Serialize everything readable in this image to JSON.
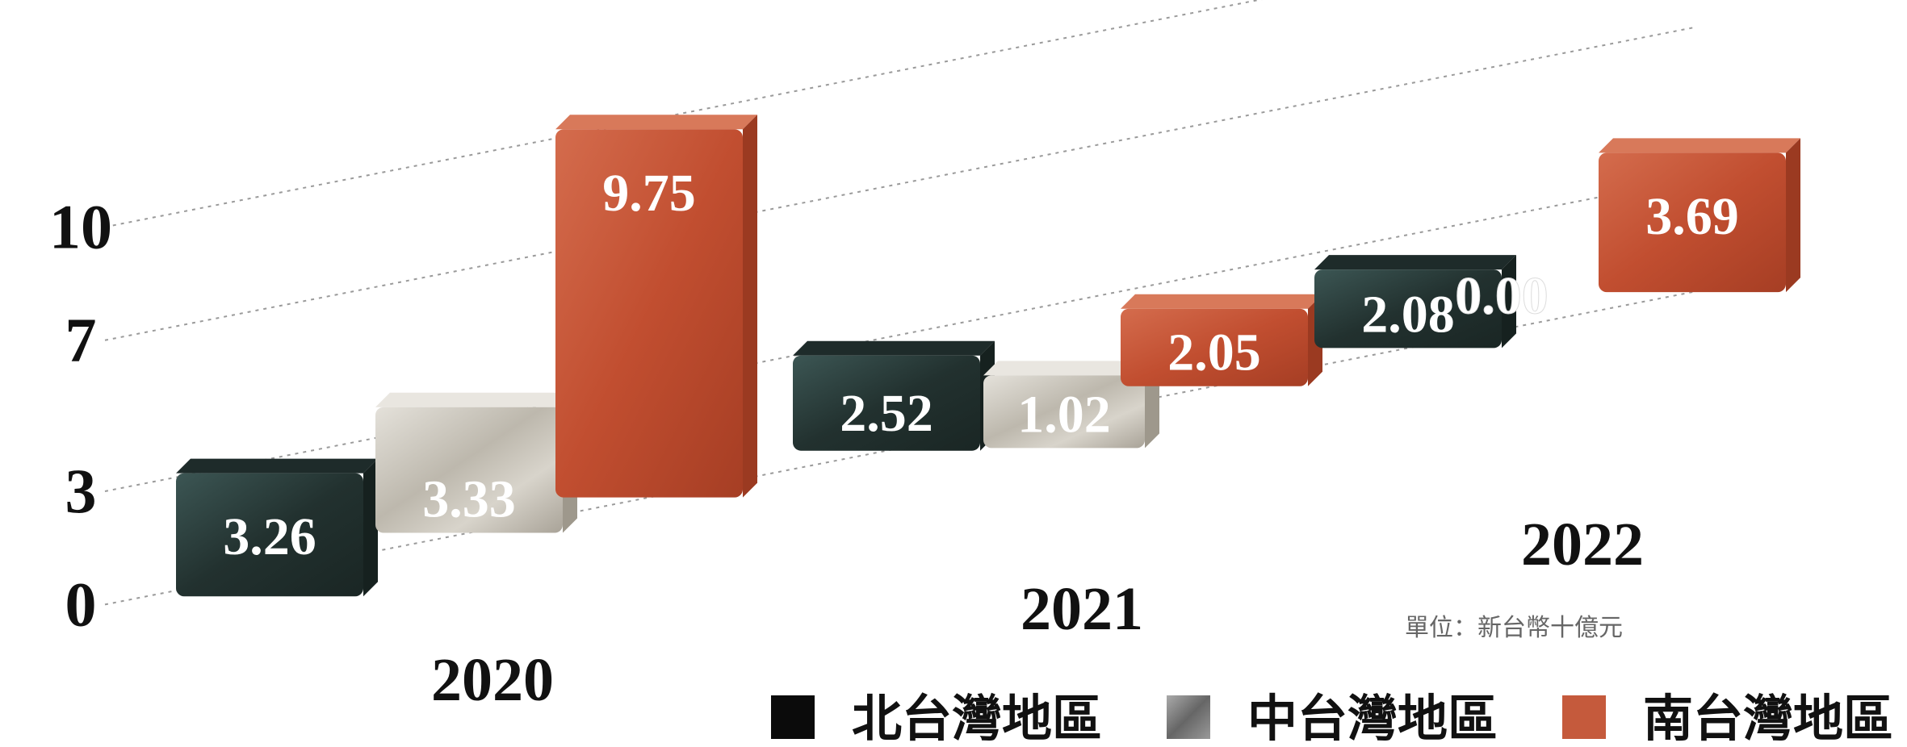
{
  "chart_data": {
    "type": "bar",
    "categories": [
      "2020",
      "2021",
      "2022"
    ],
    "series": [
      {
        "name": "北台灣地區",
        "values": [
          3.26,
          2.52,
          2.08
        ],
        "color": "#2c3e3d"
      },
      {
        "name": "中台灣地區",
        "values": [
          3.33,
          1.02,
          0.0
        ],
        "color": "#c9c6bf"
      },
      {
        "name": "南台灣地區",
        "values": [
          9.75,
          2.05,
          3.69
        ],
        "color": "#c4573a"
      }
    ],
    "value_labels": {
      "北台灣地區": [
        "3.26",
        "2.52",
        "2.08"
      ],
      "中台灣地區": [
        "3.33",
        "1.02",
        "0.00"
      ],
      "南台灣地區": [
        "9.75",
        "2.05",
        "3.69"
      ]
    },
    "yticks": [
      0,
      3,
      7,
      10
    ],
    "ytick_labels": [
      "0",
      "3",
      "7",
      "10"
    ],
    "ylim": [
      0,
      10
    ],
    "grid": true,
    "legend": "bottom-right",
    "unit_note": "單位：新台幣十億元",
    "title": "",
    "xlabel": "",
    "ylabel": ""
  }
}
